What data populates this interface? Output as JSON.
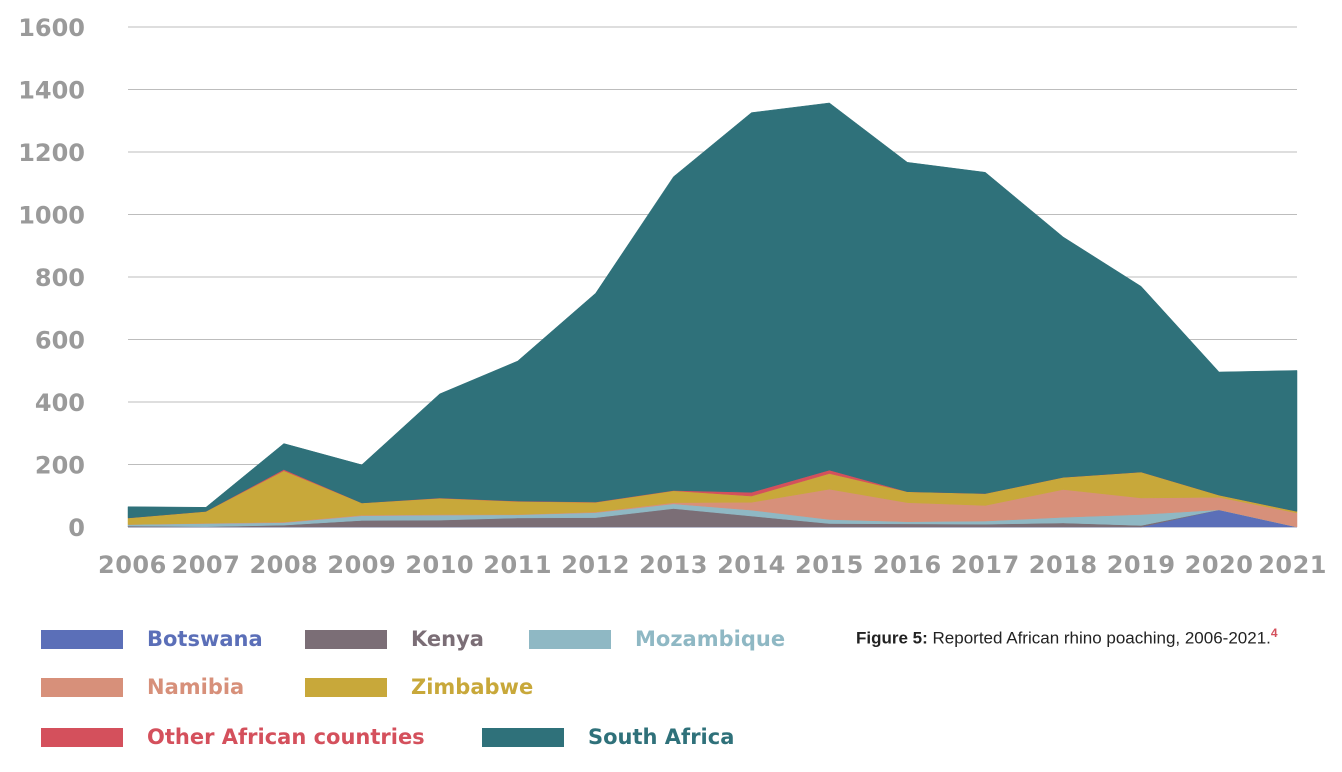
{
  "chart_data": {
    "type": "area",
    "stacked": true,
    "x": [
      "2006",
      "2007",
      "2008",
      "2009",
      "2010",
      "2011",
      "2012",
      "2013",
      "2014",
      "2015",
      "2016",
      "2017",
      "2018",
      "2019",
      "2020",
      "2021"
    ],
    "ylim": [
      0,
      1600
    ],
    "yticks": [
      "0",
      "200",
      "400",
      "600",
      "800",
      "1000",
      "1200",
      "1400",
      "1600"
    ],
    "grid": "horizontal",
    "series": [
      {
        "name": "Botswana",
        "color": "#5b6fb8",
        "values": [
          0,
          0,
          0,
          0,
          0,
          0,
          0,
          0,
          0,
          0,
          0,
          0,
          0,
          0,
          55,
          0
        ]
      },
      {
        "name": "Kenya",
        "color": "#7b6e76",
        "values": [
          3,
          1,
          6,
          21,
          22,
          29,
          30,
          59,
          35,
          11,
          10,
          9,
          13,
          5,
          0,
          0
        ]
      },
      {
        "name": "Mozambique",
        "color": "#8fb8c4",
        "values": [
          5,
          10,
          8,
          15,
          16,
          10,
          16,
          15,
          19,
          13,
          7,
          10,
          18,
          35,
          0,
          0
        ]
      },
      {
        "name": "Namibia",
        "color": "#d7907a",
        "values": [
          0,
          1,
          2,
          2,
          2,
          1,
          2,
          4,
          25,
          97,
          61,
          50,
          89,
          53,
          40,
          45
        ]
      },
      {
        "name": "Zimbabwe",
        "color": "#c8a83a",
        "values": [
          21,
          38,
          164,
          39,
          52,
          42,
          31,
          38,
          20,
          50,
          35,
          38,
          39,
          83,
          7,
          5
        ]
      },
      {
        "name": "Other African countries",
        "color": "#d4505c",
        "values": [
          0,
          0,
          4,
          0,
          1,
          1,
          1,
          1,
          12,
          11,
          0,
          0,
          0,
          0,
          0,
          0
        ]
      },
      {
        "name": "South Africa",
        "color": "#2f717a",
        "values": [
          36,
          13,
          83,
          122,
          333,
          448,
          668,
          1004,
          1215,
          1175,
          1054,
          1028,
          769,
          594,
          394,
          451
        ]
      }
    ],
    "legend_position": "bottom-left"
  },
  "caption": {
    "prefix": "Figure 5:",
    "text": " Reported African rhino poaching, 2006-2021.",
    "footnote": "4"
  }
}
